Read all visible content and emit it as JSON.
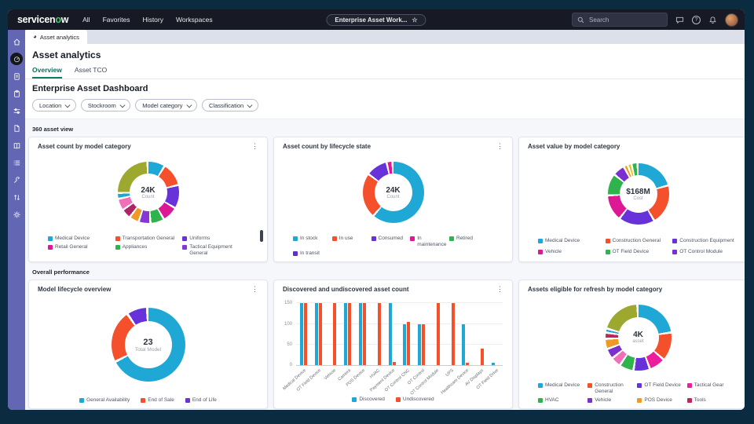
{
  "topnav": {
    "logo": {
      "text_white_1": "servicen",
      "text_green": "o",
      "text_white_2": "w"
    },
    "items": [
      "All",
      "Favorites",
      "History",
      "Workspaces"
    ],
    "context_pill": "Enterprise Asset Work...",
    "search_placeholder": "Search"
  },
  "sidebar": {
    "items": [
      {
        "icon": "home-icon",
        "active": false
      },
      {
        "icon": "dashboard-gauge-icon",
        "active": true
      },
      {
        "icon": "report-icon",
        "active": false
      },
      {
        "icon": "clipboard-icon",
        "active": false
      },
      {
        "icon": "sliders-icon",
        "active": false
      },
      {
        "icon": "file-icon",
        "active": false
      },
      {
        "icon": "book-icon",
        "active": false
      },
      {
        "icon": "list-icon",
        "active": false
      },
      {
        "icon": "wrench-icon",
        "active": false
      },
      {
        "icon": "sort-arrows-icon",
        "active": false
      },
      {
        "icon": "gear-icon",
        "active": false
      }
    ]
  },
  "workspace_tab": {
    "label": "Asset analytics"
  },
  "page": {
    "title": "Asset analytics",
    "tabs": [
      {
        "label": "Overview",
        "active": true
      },
      {
        "label": "Asset TCO",
        "active": false
      }
    ]
  },
  "dashboard": {
    "title": "Enterprise Asset Dashboard",
    "filters": [
      "Location",
      "Stockroom",
      "Model category",
      "Classification"
    ],
    "section_1": "360 asset view",
    "section_2": "Overall performance"
  },
  "colors": {
    "accent_green": "#0E7B68",
    "sidebar_purple": "#6366B2",
    "navy_frame": "#0A2B40",
    "teal": "#1FA8D5",
    "red": "#F4502B",
    "purple": "#6732D9",
    "magenta": "#DC1895",
    "green": "#2FB34C",
    "olive": "#9CA82E"
  },
  "chart_data": [
    {
      "type": "pie",
      "variant": "donut",
      "title": "Asset count by model category",
      "center_value": "24K",
      "center_label": "Count",
      "segments": [
        {
          "label": "Medical Device",
          "value": 9,
          "color": "#1FA8D5"
        },
        {
          "label": "Transportation General",
          "value": 12,
          "color": "#F4502B"
        },
        {
          "label": "Uniforms",
          "value": 12,
          "color": "#6732D9"
        },
        {
          "label": "Retail General",
          "value": 8,
          "color": "#DC1895"
        },
        {
          "label": "Appliances",
          "value": 7,
          "color": "#2FB34C"
        },
        {
          "label": "Tactical Equipment General",
          "value": 6,
          "color": "#8637D6"
        },
        {
          "label": "",
          "value": 5,
          "color": "#EF9A25"
        },
        {
          "label": "",
          "value": 5,
          "color": "#AC2667"
        },
        {
          "label": "",
          "value": 6,
          "color": "#F06FB8"
        },
        {
          "label": "",
          "value": 3,
          "color": "#1FA8D5"
        },
        {
          "label": "",
          "value": 24,
          "color": "#9CA82E"
        }
      ],
      "legend": [
        {
          "label": "Medical Device",
          "color": "#1FA8D5"
        },
        {
          "label": "Transportation General",
          "color": "#F4502B"
        },
        {
          "label": "Uniforms",
          "color": "#6732D9"
        },
        {
          "label": "Retail General",
          "color": "#DC1895"
        },
        {
          "label": "Appliances",
          "color": "#2FB34C"
        },
        {
          "label": "Tactical Equipment General",
          "color": "#8637D6"
        }
      ],
      "legend_columns": 3,
      "scrollbar": true
    },
    {
      "type": "pie",
      "variant": "donut",
      "title": "Asset count by lifecycle state",
      "center_value": "24K",
      "center_label": "Count",
      "segments": [
        {
          "label": "In stock",
          "value": 60,
          "color": "#1FA8D5"
        },
        {
          "label": "In use",
          "value": 23,
          "color": "#F4502B"
        },
        {
          "label": "Consumed",
          "value": 11,
          "color": "#6732D9"
        },
        {
          "label": "In maintenance",
          "value": 3,
          "color": "#DC1895"
        }
      ],
      "legend": [
        {
          "label": "In stock",
          "color": "#1FA8D5"
        },
        {
          "label": "In use",
          "color": "#F4502B"
        },
        {
          "label": "Consumed",
          "color": "#6732D9"
        },
        {
          "label": "In maintenance",
          "color": "#DC1895"
        },
        {
          "label": "Retired",
          "color": "#2FB34C"
        },
        {
          "label": "In transit",
          "color": "#5F2FD0"
        }
      ],
      "legend_columns": 5,
      "scrollbar": false
    },
    {
      "type": "pie",
      "variant": "donut",
      "title": "Asset value by model category",
      "center_value": "$168M",
      "center_label": "Cost",
      "segments": [
        {
          "label": "Medical Device",
          "value": 20,
          "color": "#1FA8D5"
        },
        {
          "label": "Construction General",
          "value": 20,
          "color": "#F4502B"
        },
        {
          "label": "Construction Equipment",
          "value": 18,
          "color": "#6732D9"
        },
        {
          "label": "Vehicle",
          "value": 13,
          "color": "#DC1895"
        },
        {
          "label": "OT Field Device",
          "value": 11,
          "color": "#2FB34C"
        },
        {
          "label": "OT Control Module",
          "value": 6,
          "color": "#7B2FD0"
        },
        {
          "label": "",
          "value": 2,
          "color": "#EF9A25"
        },
        {
          "label": "",
          "value": 2,
          "color": "#E4C42A"
        },
        {
          "label": "",
          "value": 3,
          "color": "#2FB34C"
        }
      ],
      "legend": [
        {
          "label": "Medical Device",
          "color": "#1FA8D5"
        },
        {
          "label": "Construction General",
          "color": "#F4502B"
        },
        {
          "label": "Construction Equipment",
          "color": "#6732D9"
        },
        {
          "label": "Vehicle",
          "color": "#DC1895"
        },
        {
          "label": "OT Field Device",
          "color": "#2FB34C"
        },
        {
          "label": "OT Control Module",
          "color": "#7B2FD0"
        }
      ],
      "legend_columns": 3,
      "scrollbar": true
    },
    {
      "type": "pie",
      "variant": "donut",
      "title": "Model lifecycle overview",
      "center_value": "23",
      "center_label": "Total Model",
      "segments": [
        {
          "label": "General Availability",
          "value": 68,
          "color": "#1FA8D5"
        },
        {
          "label": "End of Sale",
          "value": 23,
          "color": "#F4502B"
        },
        {
          "label": "End of Life",
          "value": 9,
          "color": "#6732D9"
        }
      ],
      "legend": [
        {
          "label": "General Availability",
          "color": "#1FA8D5"
        },
        {
          "label": "End of Sale",
          "color": "#F4502B"
        },
        {
          "label": "End of Life",
          "color": "#6732D9"
        }
      ],
      "legend_columns": 0,
      "scrollbar": false
    },
    {
      "type": "bar",
      "title": "Discovered and undiscovered asset count",
      "categories": [
        "Medical Device",
        "OT Field Device",
        "Vehicle",
        "Camera",
        "POS Device",
        "HVAC",
        "Payment Device",
        "OT Control CNC",
        "OT Control",
        "OT Control Module",
        "UPS",
        "Healthcare Device",
        "AV Displays",
        "OT Field Drive"
      ],
      "series": [
        {
          "name": "Discovered",
          "color": "#1FA8D5",
          "values": [
            150,
            150,
            0,
            150,
            150,
            0,
            150,
            100,
            100,
            0,
            0,
            100,
            0,
            5
          ]
        },
        {
          "name": "Undiscovered",
          "color": "#F4502B",
          "values": [
            150,
            150,
            150,
            150,
            150,
            150,
            8,
            105,
            100,
            150,
            150,
            5,
            40,
            0
          ]
        }
      ],
      "ylim": [
        0,
        160
      ],
      "yticks": [
        0,
        50,
        100,
        150
      ],
      "grid": true,
      "legend_position": "bottom"
    },
    {
      "type": "pie",
      "variant": "donut",
      "title": "Assets eligible for refresh by model category",
      "center_value": "4K",
      "center_label": "asset",
      "segments": [
        {
          "label": "Medical Device",
          "value": 23,
          "color": "#1FA8D5"
        },
        {
          "label": "Construction General",
          "value": 14,
          "color": "#F4502B"
        },
        {
          "label": "Tactical Gear",
          "value": 8,
          "color": "#ED1E9B"
        },
        {
          "label": "OT Field Device",
          "value": 8,
          "color": "#6732D9"
        },
        {
          "label": "HVAC",
          "value": 7,
          "color": "#2FB34C"
        },
        {
          "label": "",
          "value": 5,
          "color": "#F06FB8"
        },
        {
          "label": "Vehicle",
          "value": 5,
          "color": "#7B2FD0"
        },
        {
          "label": "POS Device",
          "value": 5,
          "color": "#EF9A25"
        },
        {
          "label": "Tools",
          "value": 3,
          "color": "#C0265C"
        },
        {
          "label": "",
          "value": 2,
          "color": "#1FA8D5"
        },
        {
          "label": "",
          "value": 20,
          "color": "#9CA82E"
        }
      ],
      "legend": [
        {
          "label": "Medical Device",
          "color": "#1FA8D5"
        },
        {
          "label": "Construction General",
          "color": "#F4502B"
        },
        {
          "label": "OT Field Device",
          "color": "#6732D9"
        },
        {
          "label": "Tactical Gear",
          "color": "#ED1E9B"
        },
        {
          "label": "HVAC",
          "color": "#2FB34C"
        },
        {
          "label": "Vehicle",
          "color": "#7B2FD0"
        },
        {
          "label": "POS Device",
          "color": "#EF9A25"
        },
        {
          "label": "Tools",
          "color": "#C0265C"
        }
      ],
      "legend_columns": 4,
      "scrollbar": true
    }
  ]
}
